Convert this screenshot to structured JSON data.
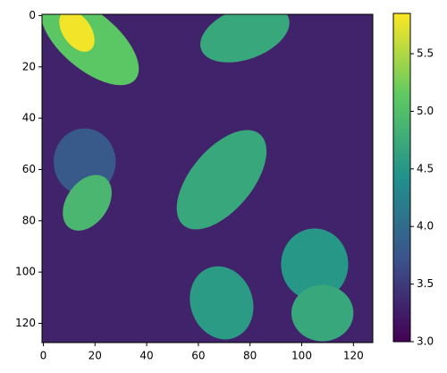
{
  "chart_data": {
    "type": "heatmap",
    "colormap": "viridis",
    "xlim": [
      -0.5,
      127.5
    ],
    "ylim": [
      127.5,
      -0.5
    ],
    "xticks": [
      0,
      20,
      40,
      60,
      80,
      100,
      120
    ],
    "yticks": [
      0,
      20,
      40,
      60,
      80,
      100,
      120
    ],
    "clim": [
      3.0,
      5.85
    ],
    "cticks": [
      {
        "value": 3,
        "label": "3.0"
      },
      3.5,
      {
        "value": 4,
        "label": "4.0"
      },
      4.5,
      {
        "value": 5,
        "label": "5.0"
      },
      5.5
    ],
    "background": 3.3,
    "regions": [
      {
        "x": 18,
        "y": 10,
        "rx": 23,
        "ry": 11,
        "angle": 40,
        "value": 5.1
      },
      {
        "x": 13,
        "y": 6,
        "rx": 9,
        "ry": 5.5,
        "angle": 55,
        "value": 5.8
      },
      {
        "x": 78,
        "y": 7,
        "rx": 18,
        "ry": 10,
        "angle": -20,
        "value": 4.7
      },
      {
        "x": 16,
        "y": 57,
        "rx": 12,
        "ry": 13,
        "angle": 0,
        "value": 3.8
      },
      {
        "x": 17,
        "y": 73,
        "rx": 8,
        "ry": 12,
        "angle": 35,
        "value": 4.9
      },
      {
        "x": 69,
        "y": 64,
        "rx": 23,
        "ry": 12,
        "angle": -50,
        "value": 4.7
      },
      {
        "x": 69,
        "y": 112,
        "rx": 12,
        "ry": 14.5,
        "angle": -20,
        "value": 4.55
      },
      {
        "x": 105,
        "y": 97,
        "rx": 13,
        "ry": 14,
        "angle": 0,
        "value": 4.5
      },
      {
        "x": 108,
        "y": 116,
        "rx": 12,
        "ry": 11,
        "angle": 0,
        "value": 4.7
      }
    ]
  }
}
